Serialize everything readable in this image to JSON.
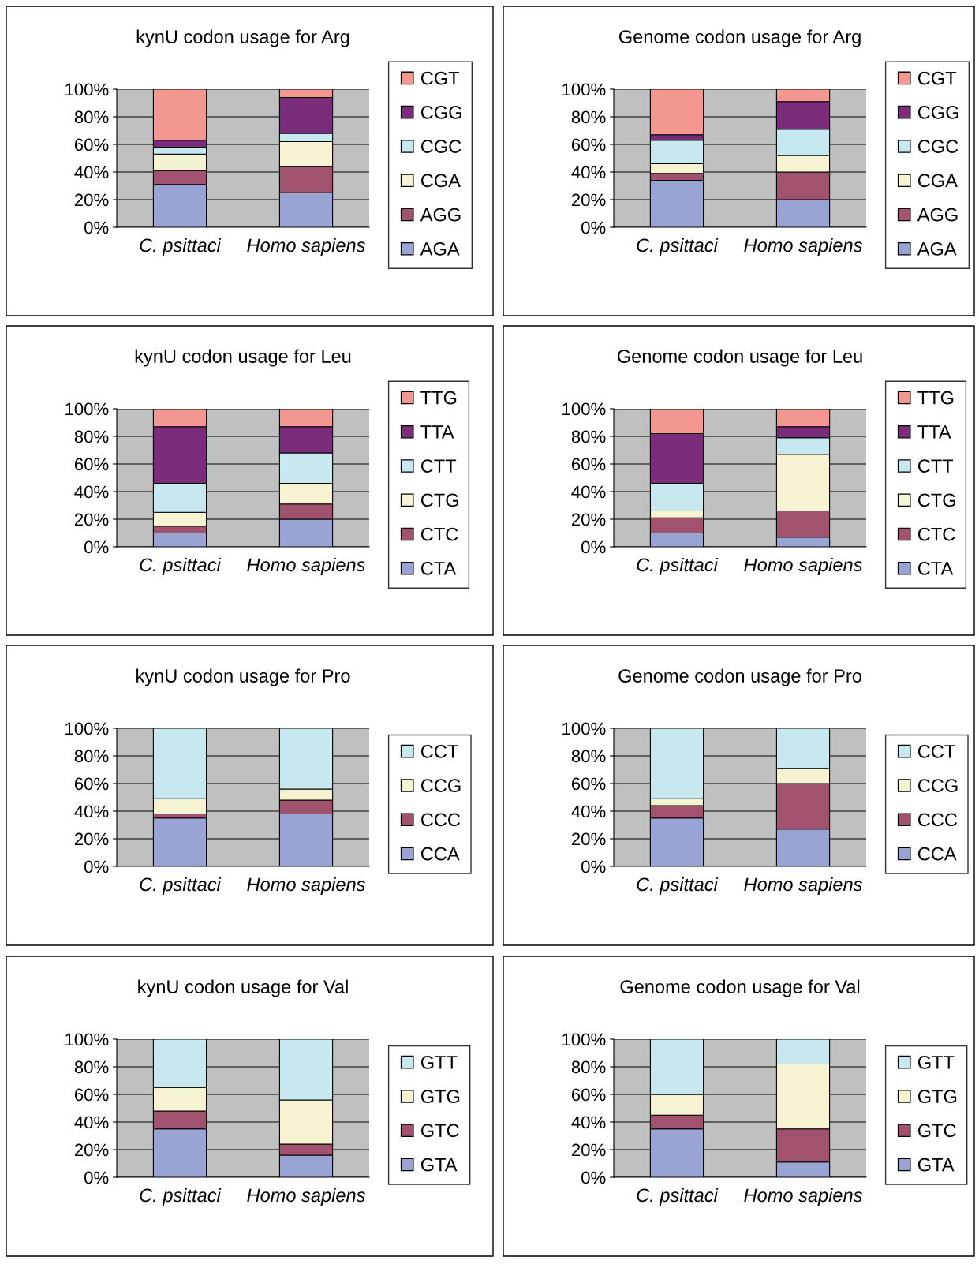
{
  "chart_data": [
    {
      "type": "bar",
      "stacked": true,
      "title": "kynU codon usage for Arg",
      "categories": [
        "C. psittaci",
        "Homo sapiens"
      ],
      "ylim": [
        0,
        100
      ],
      "yticks": [
        {
          "value": 0,
          "label": "0%"
        },
        {
          "value": 20,
          "label": "20%"
        },
        {
          "value": 40,
          "label": "40%"
        },
        {
          "value": 60,
          "label": "60%"
        },
        {
          "value": 80,
          "label": "80%"
        },
        {
          "value": 100,
          "label": "100%"
        }
      ],
      "grid": "y",
      "legend": "right",
      "series": [
        {
          "name": "AGA",
          "color": "#9aa4d4",
          "values": [
            31,
            25
          ]
        },
        {
          "name": "AGG",
          "color": "#a0526e",
          "values": [
            10,
            19
          ]
        },
        {
          "name": "CGA",
          "color": "#f5f3d2",
          "values": [
            12,
            18
          ]
        },
        {
          "name": "CGC",
          "color": "#c8e8f0",
          "values": [
            5,
            6
          ]
        },
        {
          "name": "CGG",
          "color": "#7b2d7b",
          "values": [
            5,
            26
          ]
        },
        {
          "name": "CGT",
          "color": "#f29890",
          "values": [
            37,
            6
          ]
        }
      ]
    },
    {
      "type": "bar",
      "stacked": true,
      "title": "Genome codon usage for Arg",
      "categories": [
        "C. psittaci",
        "Homo sapiens"
      ],
      "ylim": [
        0,
        100
      ],
      "yticks": [
        {
          "value": 0,
          "label": "0%"
        },
        {
          "value": 20,
          "label": "20%"
        },
        {
          "value": 40,
          "label": "40%"
        },
        {
          "value": 60,
          "label": "60%"
        },
        {
          "value": 80,
          "label": "80%"
        },
        {
          "value": 100,
          "label": "100%"
        }
      ],
      "grid": "y",
      "legend": "right",
      "series": [
        {
          "name": "AGA",
          "color": "#9aa4d4",
          "values": [
            34,
            20
          ]
        },
        {
          "name": "AGG",
          "color": "#a0526e",
          "values": [
            5,
            20
          ]
        },
        {
          "name": "CGA",
          "color": "#f5f3d2",
          "values": [
            7,
            12
          ]
        },
        {
          "name": "CGC",
          "color": "#c8e8f0",
          "values": [
            17,
            19
          ]
        },
        {
          "name": "CGG",
          "color": "#7b2d7b",
          "values": [
            4,
            20
          ]
        },
        {
          "name": "CGT",
          "color": "#f29890",
          "values": [
            33,
            9
          ]
        }
      ]
    },
    {
      "type": "bar",
      "stacked": true,
      "title": "kynU codon usage for Leu",
      "categories": [
        "C. psittaci",
        "Homo sapiens"
      ],
      "ylim": [
        0,
        100
      ],
      "yticks": [
        {
          "value": 0,
          "label": "0%"
        },
        {
          "value": 20,
          "label": "20%"
        },
        {
          "value": 40,
          "label": "40%"
        },
        {
          "value": 60,
          "label": "60%"
        },
        {
          "value": 80,
          "label": "80%"
        },
        {
          "value": 100,
          "label": "100%"
        }
      ],
      "grid": "y",
      "legend": "right",
      "series": [
        {
          "name": "CTA",
          "color": "#9aa4d4",
          "values": [
            10,
            20
          ]
        },
        {
          "name": "CTC",
          "color": "#a0526e",
          "values": [
            5,
            11
          ]
        },
        {
          "name": "CTG",
          "color": "#f5f3d2",
          "values": [
            10,
            15
          ]
        },
        {
          "name": "CTT",
          "color": "#c8e8f0",
          "values": [
            21,
            22
          ]
        },
        {
          "name": "TTA",
          "color": "#7b2d7b",
          "values": [
            41,
            19
          ]
        },
        {
          "name": "TTG",
          "color": "#f29890",
          "values": [
            13,
            13
          ]
        }
      ]
    },
    {
      "type": "bar",
      "stacked": true,
      "title": "Genome codon usage for Leu",
      "categories": [
        "C. psittaci",
        "Homo sapiens"
      ],
      "ylim": [
        0,
        100
      ],
      "yticks": [
        {
          "value": 0,
          "label": "0%"
        },
        {
          "value": 20,
          "label": "20%"
        },
        {
          "value": 40,
          "label": "40%"
        },
        {
          "value": 60,
          "label": "60%"
        },
        {
          "value": 80,
          "label": "80%"
        },
        {
          "value": 100,
          "label": "100%"
        }
      ],
      "grid": "y",
      "legend": "right",
      "series": [
        {
          "name": "CTA",
          "color": "#9aa4d4",
          "values": [
            10,
            7
          ]
        },
        {
          "name": "CTC",
          "color": "#a0526e",
          "values": [
            11,
            19
          ]
        },
        {
          "name": "CTG",
          "color": "#f5f3d2",
          "values": [
            5,
            41
          ]
        },
        {
          "name": "CTT",
          "color": "#c8e8f0",
          "values": [
            20,
            12
          ]
        },
        {
          "name": "TTA",
          "color": "#7b2d7b",
          "values": [
            36,
            8
          ]
        },
        {
          "name": "TTG",
          "color": "#f29890",
          "values": [
            18,
            13
          ]
        }
      ]
    },
    {
      "type": "bar",
      "stacked": true,
      "title": "kynU codon usage for Pro",
      "categories": [
        "C. psittaci",
        "Homo sapiens"
      ],
      "ylim": [
        0,
        100
      ],
      "yticks": [
        {
          "value": 0,
          "label": "0%"
        },
        {
          "value": 20,
          "label": "20%"
        },
        {
          "value": 40,
          "label": "40%"
        },
        {
          "value": 60,
          "label": "60%"
        },
        {
          "value": 80,
          "label": "80%"
        },
        {
          "value": 100,
          "label": "100%"
        }
      ],
      "grid": "y",
      "legend": "right",
      "series": [
        {
          "name": "CCA",
          "color": "#9aa4d4",
          "values": [
            35,
            38
          ]
        },
        {
          "name": "CCC",
          "color": "#a0526e",
          "values": [
            3,
            10
          ]
        },
        {
          "name": "CCG",
          "color": "#f5f3d2",
          "values": [
            11,
            8
          ]
        },
        {
          "name": "CCT",
          "color": "#c8e8f0",
          "values": [
            51,
            44
          ]
        }
      ]
    },
    {
      "type": "bar",
      "stacked": true,
      "title": "Genome codon usage for Pro",
      "categories": [
        "C. psittaci",
        "Homo sapiens"
      ],
      "ylim": [
        0,
        100
      ],
      "yticks": [
        {
          "value": 0,
          "label": "0%"
        },
        {
          "value": 20,
          "label": "20%"
        },
        {
          "value": 40,
          "label": "40%"
        },
        {
          "value": 60,
          "label": "60%"
        },
        {
          "value": 80,
          "label": "80%"
        },
        {
          "value": 100,
          "label": "100%"
        }
      ],
      "grid": "y",
      "legend": "right",
      "series": [
        {
          "name": "CCA",
          "color": "#9aa4d4",
          "values": [
            35,
            27
          ]
        },
        {
          "name": "CCC",
          "color": "#a0526e",
          "values": [
            9,
            33
          ]
        },
        {
          "name": "CCG",
          "color": "#f5f3d2",
          "values": [
            5,
            11
          ]
        },
        {
          "name": "CCT",
          "color": "#c8e8f0",
          "values": [
            51,
            29
          ]
        }
      ]
    },
    {
      "type": "bar",
      "stacked": true,
      "title": "kynU codon usage for Val",
      "categories": [
        "C. psittaci",
        "Homo sapiens"
      ],
      "ylim": [
        0,
        100
      ],
      "yticks": [
        {
          "value": 0,
          "label": "0%"
        },
        {
          "value": 20,
          "label": "20%"
        },
        {
          "value": 40,
          "label": "40%"
        },
        {
          "value": 60,
          "label": "60%"
        },
        {
          "value": 80,
          "label": "80%"
        },
        {
          "value": 100,
          "label": "100%"
        }
      ],
      "grid": "y",
      "legend": "right",
      "series": [
        {
          "name": "GTA",
          "color": "#9aa4d4",
          "values": [
            35,
            16
          ]
        },
        {
          "name": "GTC",
          "color": "#a0526e",
          "values": [
            13,
            8
          ]
        },
        {
          "name": "GTG",
          "color": "#f5f3d2",
          "values": [
            17,
            32
          ]
        },
        {
          "name": "GTT",
          "color": "#c8e8f0",
          "values": [
            35,
            44
          ]
        }
      ]
    },
    {
      "type": "bar",
      "stacked": true,
      "title": "Genome codon usage for Val",
      "categories": [
        "C. psittaci",
        "Homo sapiens"
      ],
      "ylim": [
        0,
        100
      ],
      "yticks": [
        {
          "value": 0,
          "label": "0%"
        },
        {
          "value": 20,
          "label": "20%"
        },
        {
          "value": 40,
          "label": "40%"
        },
        {
          "value": 60,
          "label": "60%"
        },
        {
          "value": 80,
          "label": "80%"
        },
        {
          "value": 100,
          "label": "100%"
        }
      ],
      "grid": "y",
      "legend": "right",
      "series": [
        {
          "name": "GTA",
          "color": "#9aa4d4",
          "values": [
            35,
            11
          ]
        },
        {
          "name": "GTC",
          "color": "#a0526e",
          "values": [
            10,
            24
          ]
        },
        {
          "name": "GTG",
          "color": "#f5f3d2",
          "values": [
            15,
            47
          ]
        },
        {
          "name": "GTT",
          "color": "#c8e8f0",
          "values": [
            40,
            18
          ]
        }
      ]
    }
  ]
}
